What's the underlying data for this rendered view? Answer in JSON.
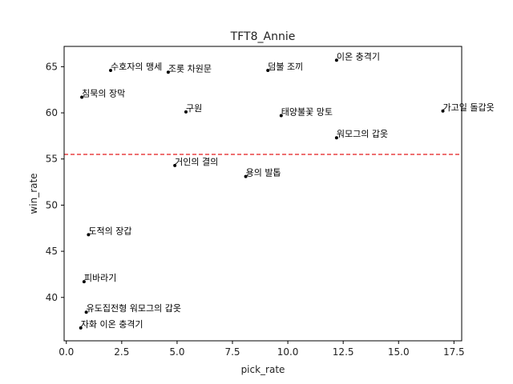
{
  "chart_data": {
    "type": "scatter",
    "title": "TFT8_Annie",
    "xlabel": "pick_rate",
    "ylabel": "win_rate",
    "xlim": [
      -0.1,
      17.85
    ],
    "ylim": [
      35.3,
      67.2
    ],
    "xticks": [
      0.0,
      2.5,
      5.0,
      7.5,
      10.0,
      12.5,
      15.0,
      17.5
    ],
    "xtick_labels": [
      "0.0",
      "2.5",
      "5.0",
      "7.5",
      "10.0",
      "12.5",
      "15.0",
      "17.5"
    ],
    "yticks": [
      40,
      45,
      50,
      55,
      60,
      65
    ],
    "ytick_labels": [
      "40",
      "45",
      "50",
      "55",
      "60",
      "65"
    ],
    "grid": false,
    "reference_line": {
      "y": 55.5,
      "color": "#e31a1c",
      "style": "dashed"
    },
    "points": [
      {
        "label": "이온 충격기",
        "x": 12.2,
        "y": 65.7
      },
      {
        "label": "수호자의 맹세",
        "x": 2.0,
        "y": 64.6
      },
      {
        "label": "덤불 조끼",
        "x": 9.1,
        "y": 64.6
      },
      {
        "label": "조롯 차원문",
        "x": 4.6,
        "y": 64.4
      },
      {
        "label": "침묵의 장막",
        "x": 0.7,
        "y": 61.7
      },
      {
        "label": "가고일 돌갑옷",
        "x": 17.0,
        "y": 60.2
      },
      {
        "label": "구원",
        "x": 5.4,
        "y": 60.1
      },
      {
        "label": "태양불꽃 망토",
        "x": 9.7,
        "y": 59.7
      },
      {
        "label": "워모그의 갑옷",
        "x": 12.2,
        "y": 57.3
      },
      {
        "label": "거인의 결의",
        "x": 4.9,
        "y": 54.3
      },
      {
        "label": "용의 발톱",
        "x": 8.1,
        "y": 53.1
      },
      {
        "label": "도적의 장갑",
        "x": 1.0,
        "y": 46.8
      },
      {
        "label": "피바라기",
        "x": 0.8,
        "y": 41.7
      },
      {
        "label": "유도집전형 워모그의 갑옷",
        "x": 0.9,
        "y": 38.4
      },
      {
        "label": "자화 이온 충격기",
        "x": 0.65,
        "y": 36.7
      }
    ],
    "colors": {
      "points": "#000000",
      "reference_line": "#e31a1c",
      "axes": "#000000"
    }
  }
}
